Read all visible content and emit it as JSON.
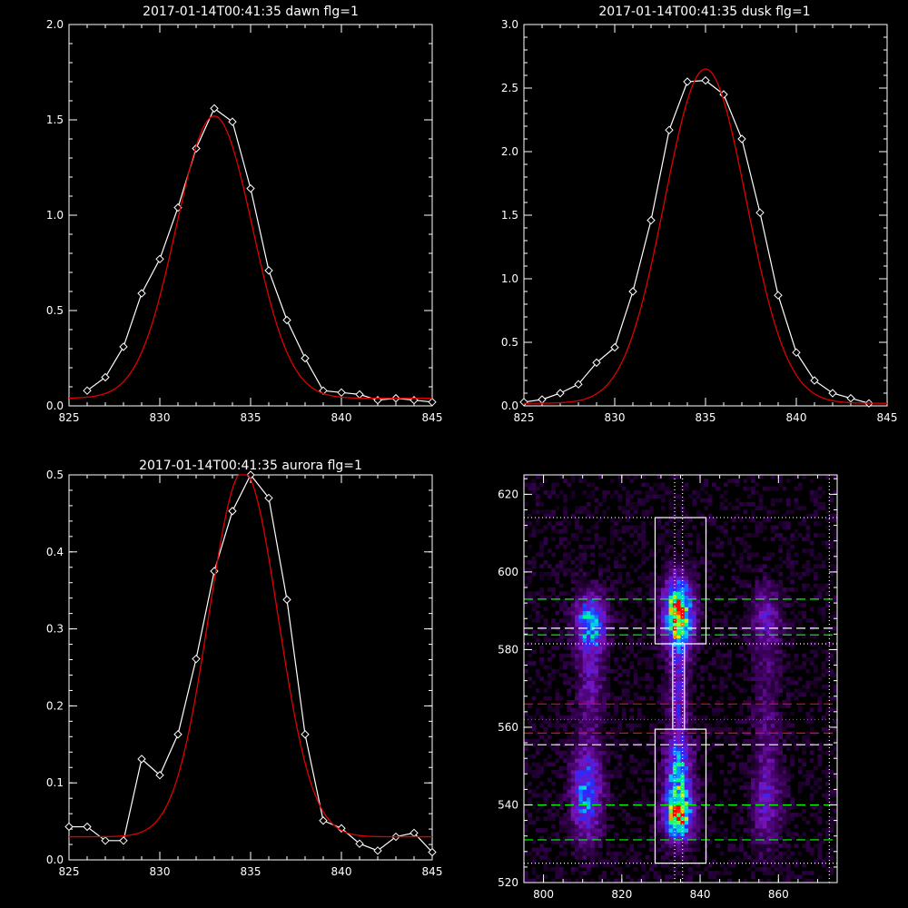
{
  "chart_data": [
    {
      "type": "line",
      "title": "2017-01-14T00:41:35 dawn flg=1",
      "xlim": [
        825,
        845
      ],
      "ylim": [
        0,
        2.0
      ],
      "xticks": [
        "825",
        "830",
        "835",
        "840",
        "845"
      ],
      "yticks": [
        "0.0",
        "0.5",
        "1.0",
        "1.5",
        "2.0"
      ],
      "series": [
        {
          "style": "observed",
          "color": "#ffffff",
          "x": [
            826,
            827,
            828,
            829,
            830,
            831,
            832,
            833,
            834,
            835,
            836,
            837,
            838,
            839,
            840,
            841,
            842,
            843,
            844,
            845
          ],
          "y": [
            0.08,
            0.15,
            0.31,
            0.59,
            0.77,
            1.04,
            1.35,
            1.56,
            1.49,
            1.14,
            0.71,
            0.45,
            0.25,
            0.08,
            0.07,
            0.06,
            0.03,
            0.04,
            0.03,
            0.02
          ]
        },
        {
          "style": "fit",
          "color": "#e00000",
          "kind": "gaussian",
          "amp": 1.48,
          "center": 833.0,
          "sigma": 2.1,
          "offset": 0.04
        }
      ]
    },
    {
      "type": "line",
      "title": "2017-01-14T00:41:35 dusk flg=1",
      "xlim": [
        825,
        845
      ],
      "ylim": [
        0,
        3.0
      ],
      "xticks": [
        "825",
        "830",
        "835",
        "840",
        "845"
      ],
      "yticks": [
        "0.0",
        "0.5",
        "1.0",
        "1.5",
        "2.0",
        "2.5",
        "3.0"
      ],
      "series": [
        {
          "style": "observed",
          "color": "#ffffff",
          "x": [
            825,
            826,
            827,
            828,
            829,
            830,
            831,
            832,
            833,
            834,
            835,
            836,
            837,
            838,
            839,
            840,
            841,
            842,
            843,
            844
          ],
          "y": [
            0.03,
            0.05,
            0.1,
            0.17,
            0.34,
            0.46,
            0.9,
            1.46,
            2.17,
            2.55,
            2.56,
            2.45,
            2.1,
            1.52,
            0.87,
            0.42,
            0.2,
            0.1,
            0.06,
            0.02
          ]
        },
        {
          "style": "fit",
          "color": "#e00000",
          "kind": "gaussian",
          "amp": 2.63,
          "center": 835.0,
          "sigma": 2.25,
          "offset": 0.02
        }
      ]
    },
    {
      "type": "line",
      "title": "2017-01-14T00:41:35 aurora flg=1",
      "xlim": [
        825,
        845
      ],
      "ylim": [
        0,
        0.5
      ],
      "xticks": [
        "825",
        "830",
        "835",
        "840",
        "845"
      ],
      "yticks": [
        "0.0",
        "0.1",
        "0.2",
        "0.3",
        "0.4",
        "0.5"
      ],
      "series": [
        {
          "style": "observed",
          "color": "#ffffff",
          "x": [
            825,
            826,
            827,
            828,
            829,
            830,
            831,
            832,
            833,
            834,
            835,
            836,
            837,
            838,
            839,
            840,
            841,
            842,
            843,
            844,
            845
          ],
          "y": [
            0.043,
            0.043,
            0.025,
            0.025,
            0.131,
            0.11,
            0.163,
            0.261,
            0.375,
            0.453,
            0.5,
            0.47,
            0.338,
            0.163,
            0.051,
            0.041,
            0.021,
            0.012,
            0.03,
            0.035,
            0.01
          ]
        },
        {
          "style": "fit",
          "color": "#e00000",
          "kind": "gaussian",
          "amp": 0.475,
          "center": 834.6,
          "sigma": 1.9,
          "offset": 0.03
        }
      ]
    },
    {
      "type": "heatmap",
      "xlim": [
        795,
        875
      ],
      "ylim": [
        520,
        625
      ],
      "xticks": [
        "800",
        "820",
        "840",
        "860"
      ],
      "yticks": [
        "520",
        "540",
        "560",
        "580",
        "600",
        "620"
      ],
      "blobs": [
        {
          "x": 834.5,
          "y": 589,
          "sx": 2.4,
          "sy": 6,
          "amp": 1.0
        },
        {
          "x": 834.5,
          "y": 570,
          "sx": 1.6,
          "sy": 9,
          "amp": 0.28
        },
        {
          "x": 834.5,
          "y": 548,
          "sx": 2.3,
          "sy": 7,
          "amp": 0.55
        },
        {
          "x": 834.5,
          "y": 537,
          "sx": 2.4,
          "sy": 4,
          "amp": 0.8
        },
        {
          "x": 812,
          "y": 587,
          "sx": 2.6,
          "sy": 5,
          "amp": 0.55
        },
        {
          "x": 812,
          "y": 572,
          "sx": 2.2,
          "sy": 9,
          "amp": 0.22
        },
        {
          "x": 811,
          "y": 543,
          "sx": 2.6,
          "sy": 8,
          "amp": 0.48
        },
        {
          "x": 857,
          "y": 588,
          "sx": 2.6,
          "sy": 6,
          "amp": 0.22
        },
        {
          "x": 857,
          "y": 560,
          "sx": 2.4,
          "sy": 16,
          "amp": 0.13
        },
        {
          "x": 857,
          "y": 540,
          "sx": 2.6,
          "sy": 7,
          "amp": 0.2
        }
      ],
      "boxes": [
        {
          "x0": 828.5,
          "x1": 841.5,
          "y0": 581.5,
          "y1": 614
        },
        {
          "x0": 828.5,
          "x1": 841.5,
          "y0": 525,
          "y1": 559.5
        },
        {
          "x0": 833,
          "x1": 836,
          "y0": 559.5,
          "y1": 581.5
        }
      ],
      "hlines": [
        {
          "y": 614,
          "color": "#ffffff",
          "dash": "dotted"
        },
        {
          "y": 593,
          "color": "#00ff00",
          "dash": "dashed"
        },
        {
          "y": 585.5,
          "color": "#ffffff",
          "dash": "dashed"
        },
        {
          "y": 583.8,
          "color": "#00ff00",
          "dash": "dashed"
        },
        {
          "y": 581.5,
          "color": "#ffffff",
          "dash": "dotted"
        },
        {
          "y": 566,
          "color": "#ff0000",
          "dash": "dashed"
        },
        {
          "y": 558.5,
          "color": "#ff0000",
          "dash": "dashed"
        },
        {
          "y": 562,
          "color": "#ff00ff",
          "dash": "dotted"
        },
        {
          "y": 555.5,
          "color": "#ffffff",
          "dash": "dashed"
        },
        {
          "y": 540,
          "color": "#00ff00",
          "dash": "dashed"
        },
        {
          "y": 531,
          "color": "#00ff00",
          "dash": "dashed"
        },
        {
          "y": 525,
          "color": "#ffffff",
          "dash": "dotted"
        }
      ],
      "vlines": [
        {
          "x": 833.5,
          "color": "#ffffff",
          "dash": "dotted"
        },
        {
          "x": 835.5,
          "color": "#ffffff",
          "dash": "dotted"
        },
        {
          "x": 873,
          "color": "#ffffff",
          "dash": "dotted"
        }
      ]
    }
  ]
}
